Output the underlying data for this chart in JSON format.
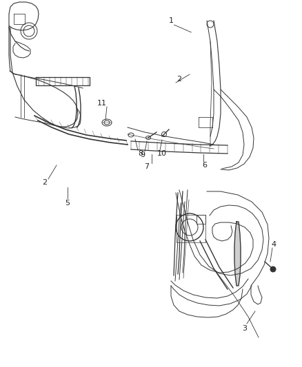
{
  "background_color": "#ffffff",
  "line_color": "#404040",
  "figsize": [
    4.39,
    5.33
  ],
  "dpi": 100,
  "upper_panel": {
    "xlim": [
      0,
      439
    ],
    "ylim": [
      0,
      533
    ]
  }
}
